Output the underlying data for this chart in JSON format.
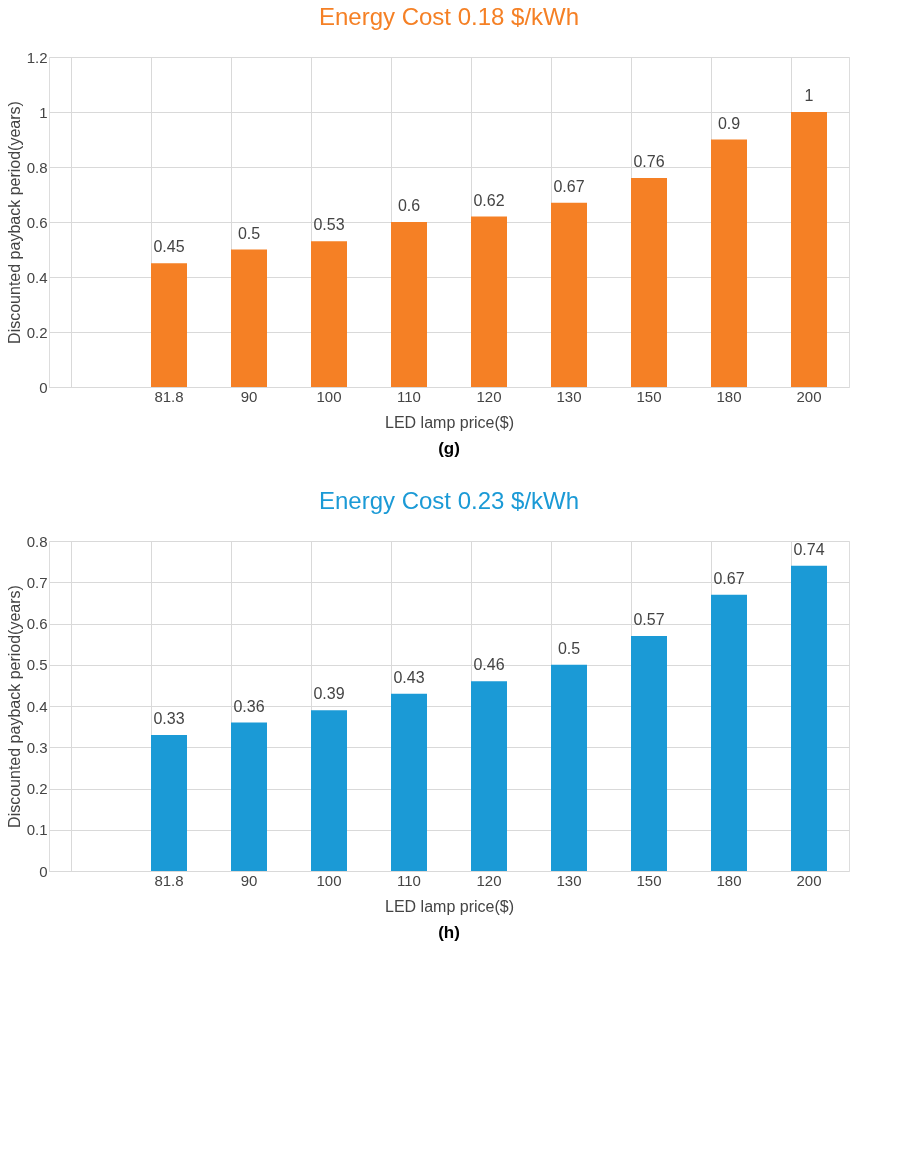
{
  "chart_data": [
    {
      "type": "bar",
      "title": "Energy Cost 0.18 $/kWh",
      "xlabel": "LED lamp price($)",
      "ylabel": "Discounted payback period(years)",
      "categories": [
        null,
        "81.8",
        "90",
        "100",
        "110",
        "120",
        "130",
        "150",
        "180",
        "200"
      ],
      "values": [
        null,
        0.45,
        0.5,
        0.53,
        0.6,
        0.62,
        0.67,
        0.76,
        0.9,
        1
      ],
      "color": "#f58025",
      "ylim": [
        0,
        1.2
      ],
      "yticks": [
        0,
        0.2,
        0.4,
        0.6,
        0.8,
        1,
        1.2
      ],
      "grid": true,
      "data_labels": true,
      "annotations": [
        "(g)"
      ]
    },
    {
      "type": "bar",
      "title": "Energy Cost 0.23 $/kWh",
      "xlabel": "LED lamp price($)",
      "ylabel": "Discounted payback period(years)",
      "categories": [
        null,
        "81.8",
        "90",
        "100",
        "110",
        "120",
        "130",
        "150",
        "180",
        "200"
      ],
      "values": [
        null,
        0.33,
        0.36,
        0.39,
        0.43,
        0.46,
        0.5,
        0.57,
        0.67,
        0.74
      ],
      "color": "#1b9ad6",
      "ylim": [
        0,
        0.8
      ],
      "yticks": [
        0,
        0.1,
        0.2,
        0.3,
        0.4,
        0.5,
        0.6,
        0.7,
        0.8
      ],
      "grid": true,
      "data_labels": true,
      "annotations": [
        "(h)"
      ]
    }
  ]
}
